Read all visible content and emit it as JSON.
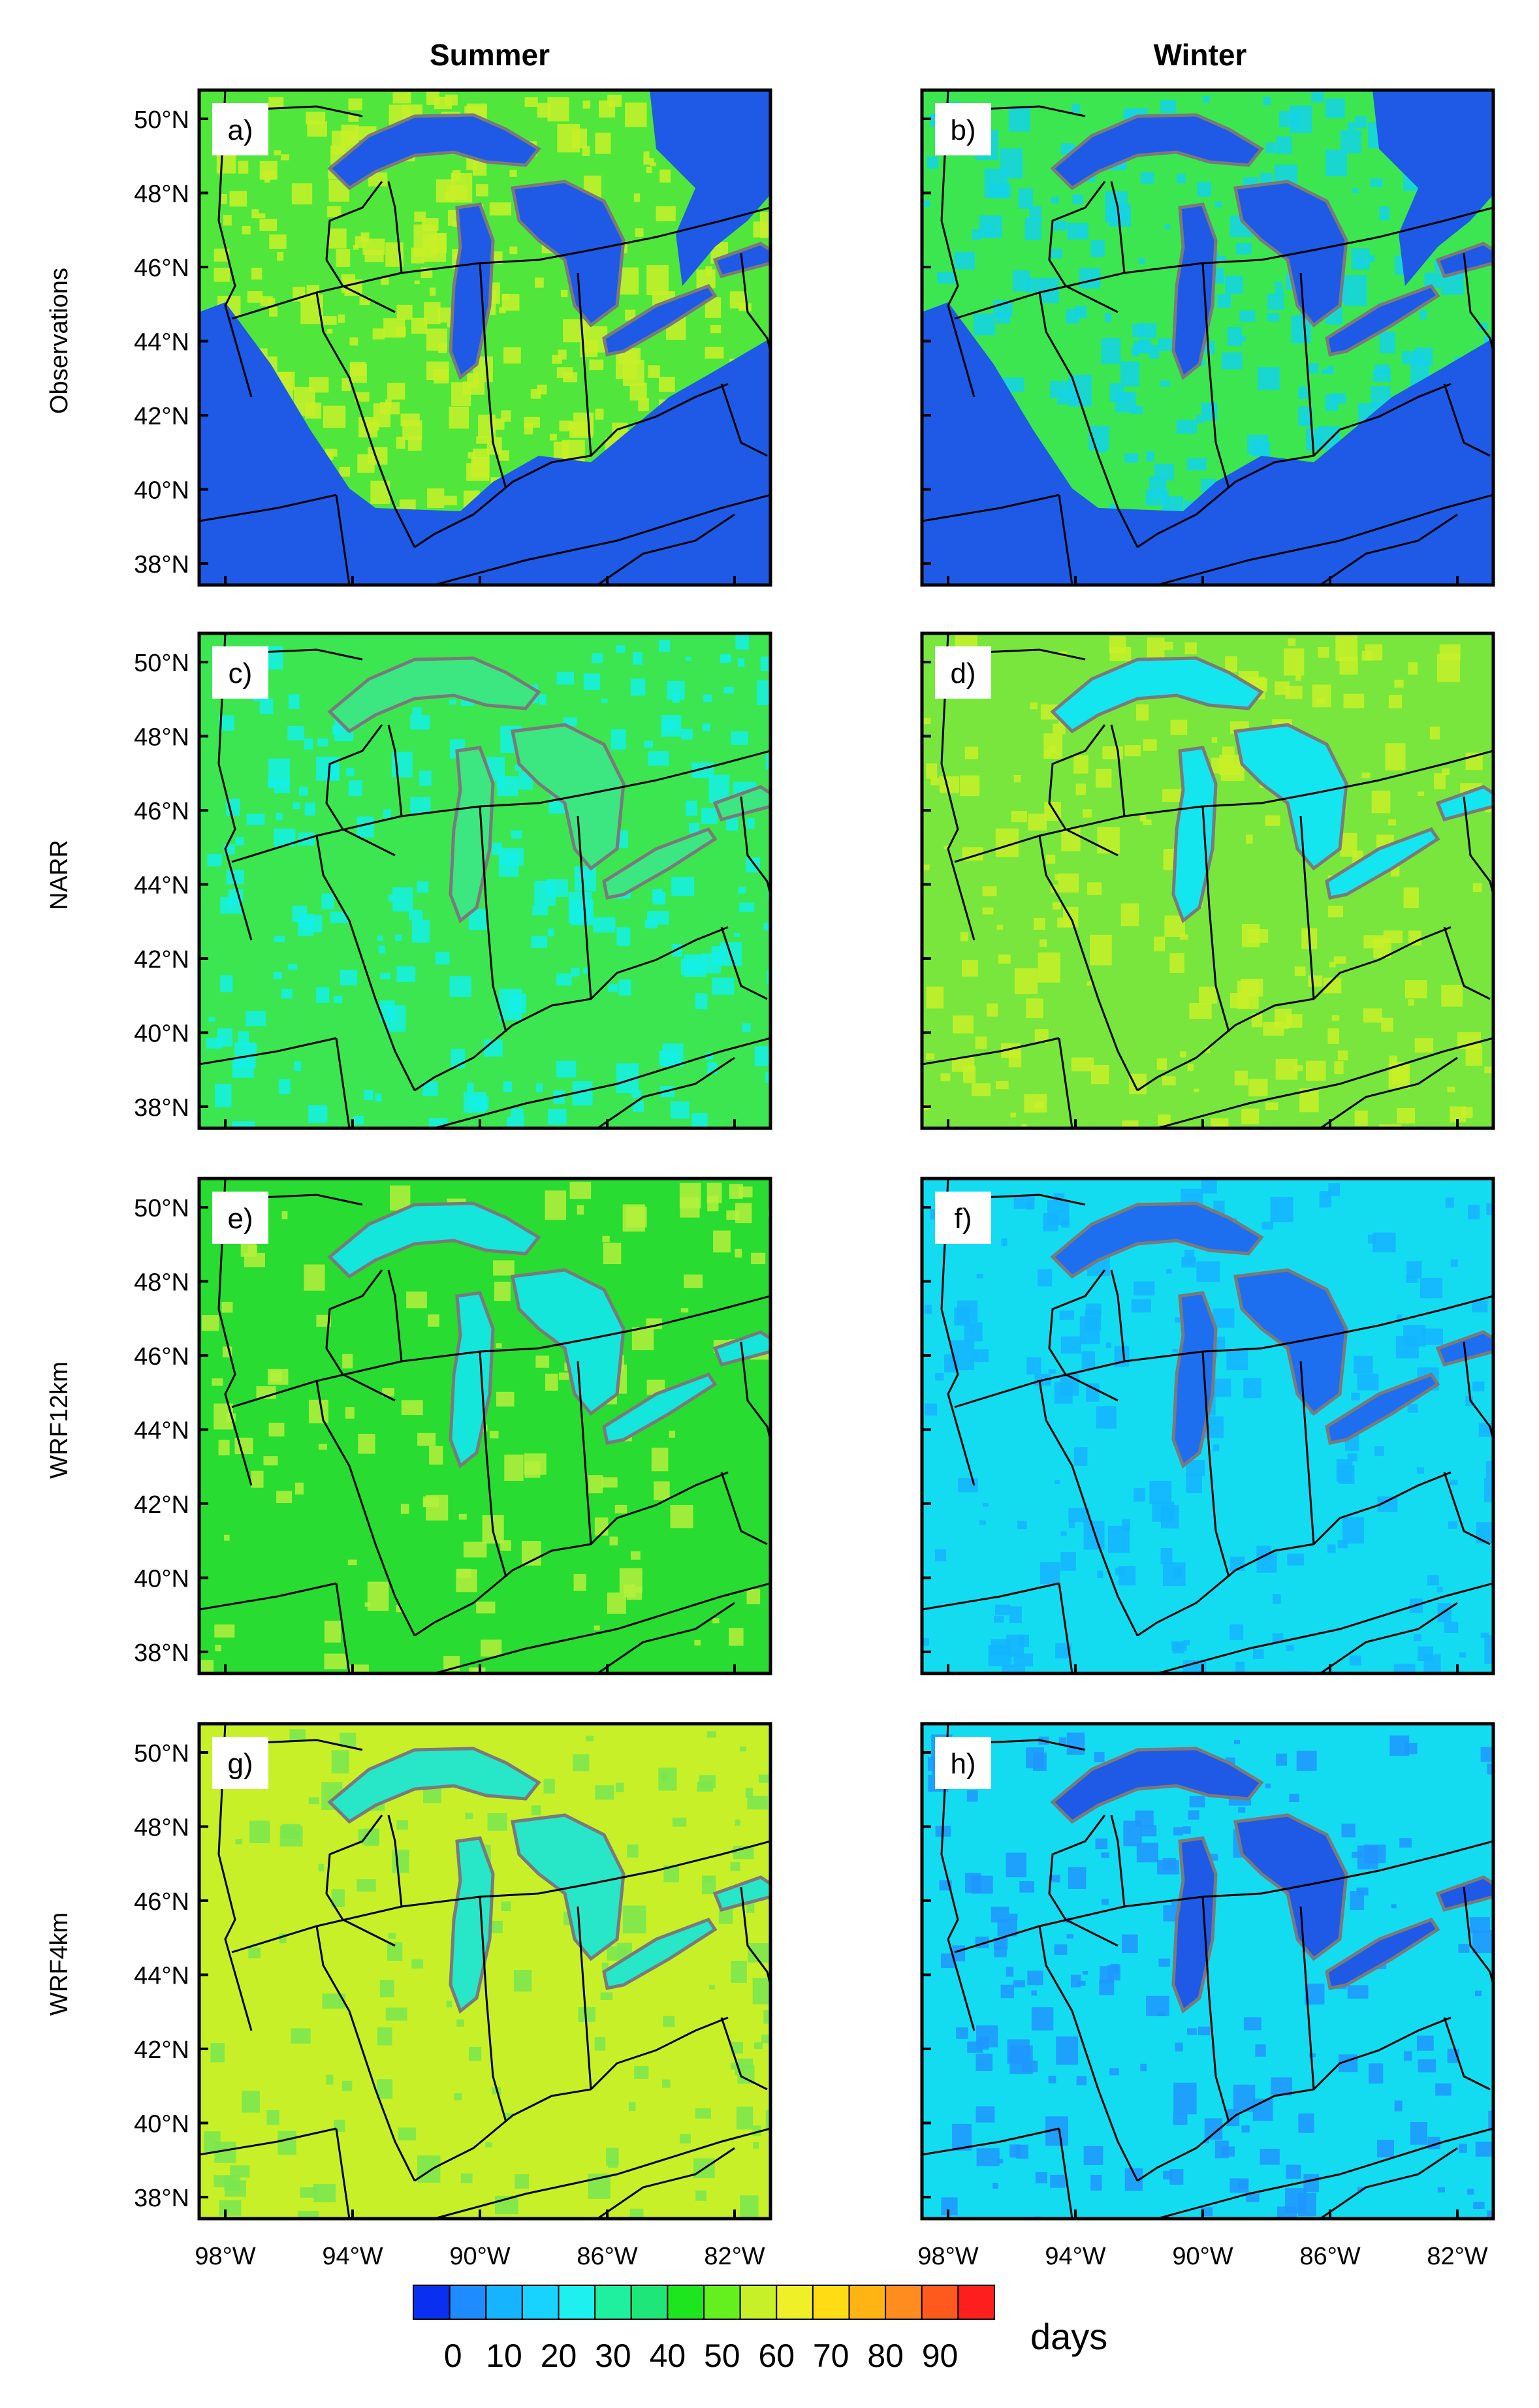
{
  "columns": [
    "Summer",
    "Winter"
  ],
  "rows": [
    "Observations",
    "NARR",
    "WRF12km",
    "WRF4km"
  ],
  "panel_labels": [
    "a)",
    "b)",
    "c)",
    "d)",
    "e)",
    "f)",
    "g)",
    "h)"
  ],
  "lat_ticks": [
    "50°N",
    "48°N",
    "46°N",
    "44°N",
    "42°N",
    "40°N",
    "38°N"
  ],
  "lon_ticks": [
    "98°W",
    "94°W",
    "90°W",
    "86°W",
    "82°W"
  ],
  "colorbar": {
    "unit_label": "days",
    "tick_labels": [
      "0",
      "10",
      "20",
      "30",
      "40",
      "50",
      "60",
      "70",
      "80",
      "90"
    ],
    "colors": [
      "#0a2ff0",
      "#1e8cff",
      "#16b4ff",
      "#18d2ff",
      "#1ef0f0",
      "#1ef0a0",
      "#1ee678",
      "#1ee61e",
      "#64f01e",
      "#c8f028",
      "#f0f028",
      "#ffdc14",
      "#ffb414",
      "#ff8c1e",
      "#ff5a1e",
      "#ff1e1e"
    ]
  },
  "panels": [
    {
      "label_index": 0,
      "style": "obs-summer",
      "water": "#1e5ae6",
      "land": "#50e63c",
      "dots": "#c8f028",
      "dot_density": 0.45
    },
    {
      "label_index": 1,
      "style": "obs-winter",
      "water": "#1e5ae6",
      "land": "#3ce650",
      "dots": "#14d2e6",
      "dot_density": 0.35
    },
    {
      "label_index": 2,
      "style": "narr-summer",
      "water": "#3ce680",
      "land": "#3ce650",
      "dots": "#14f0e6",
      "dot_density": 0.25
    },
    {
      "label_index": 3,
      "style": "narr-winter",
      "water": "#14e6f0",
      "land": "#78e63c",
      "dots": "#c8f028",
      "dot_density": 0.25
    },
    {
      "label_index": 4,
      "style": "wrf12-summer",
      "water": "#14e6dc",
      "land": "#28dc32",
      "dots": "#b4f03c",
      "dot_density": 0.15
    },
    {
      "label_index": 5,
      "style": "wrf12-winter",
      "water": "#1e6ef0",
      "land": "#14dcf0",
      "dots": "#14b4ff",
      "dot_density": 0.2
    },
    {
      "label_index": 6,
      "style": "wrf4-summer",
      "water": "#28e6c8",
      "land": "#c8f028",
      "dots": "#78e650",
      "dot_density": 0.15
    },
    {
      "label_index": 7,
      "style": "wrf4-winter",
      "water": "#1e5ae6",
      "land": "#14dcf0",
      "dots": "#1e96ff",
      "dot_density": 0.2
    }
  ]
}
